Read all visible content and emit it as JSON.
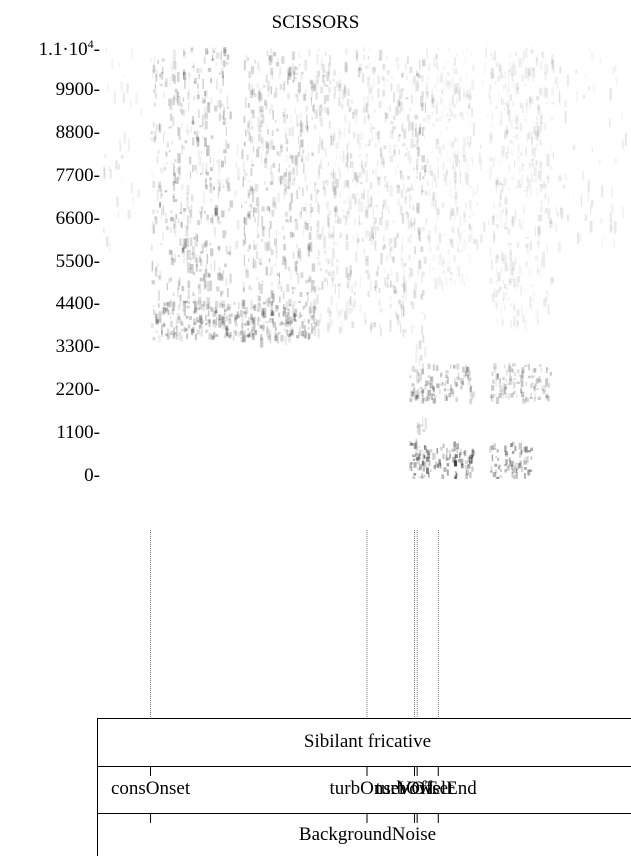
{
  "chart_data": {
    "type": "heatmap",
    "title": "SCISSORS",
    "ylabel": "",
    "xlabel": "",
    "ylim": [
      0,
      11000
    ],
    "yticks": [
      {
        "value": 0,
        "label": "0-"
      },
      {
        "value": 1100,
        "label": "1100-"
      },
      {
        "value": 2200,
        "label": "2200-"
      },
      {
        "value": 3300,
        "label": "3300-"
      },
      {
        "value": 4400,
        "label": "4400-"
      },
      {
        "value": 5500,
        "label": "5500-"
      },
      {
        "value": 6600,
        "label": "6600-"
      },
      {
        "value": 7700,
        "label": "7700-"
      },
      {
        "value": 8800,
        "label": "8800-"
      },
      {
        "value": 9900,
        "label": "9900-"
      },
      {
        "value": 11000,
        "label": "1.1·10",
        "label_exp": "4",
        "label_suffix": "-"
      }
    ],
    "time_range": [
      0,
      1
    ],
    "segments": [
      {
        "name": "",
        "start": 0.09,
        "end": 0.24,
        "low_cut": 3600,
        "intensity": 0.75
      },
      {
        "name": "",
        "start": 0.26,
        "end": 0.4,
        "low_cut": 3600,
        "intensity": 0.7
      },
      {
        "name": "",
        "start": 0.4,
        "end": 0.59,
        "low_cut": 3800,
        "intensity": 0.45
      },
      {
        "name": "",
        "start": 0.59,
        "end": 0.61,
        "low_cut": 0,
        "intensity": 0.6
      },
      {
        "name": "",
        "start": 0.61,
        "end": 0.7,
        "low_cut": 5000,
        "intensity": 0.25
      },
      {
        "name": "",
        "start": 0.73,
        "end": 0.85,
        "low_cut": 4000,
        "intensity": 0.3
      }
    ],
    "formants": [
      {
        "start": 0.58,
        "end": 0.7,
        "freq": 500,
        "intensity": 0.85
      },
      {
        "start": 0.73,
        "end": 0.81,
        "freq": 500,
        "intensity": 0.8
      },
      {
        "start": 0.58,
        "end": 0.7,
        "freq": 2500,
        "intensity": 0.55
      },
      {
        "start": 0.73,
        "end": 0.85,
        "freq": 2500,
        "intensity": 0.45
      },
      {
        "start": 0.09,
        "end": 0.4,
        "freq": 4100,
        "intensity": 0.5
      }
    ]
  },
  "annotation": {
    "event_times": [
      0.09,
      0.5,
      0.59,
      0.595,
      0.635
    ],
    "tier1_label": "Sibilant fricative",
    "tier2_labels": [
      {
        "text": "consOnset",
        "time": 0.09
      },
      {
        "text": "turbOnset",
        "time": 0.5
      },
      {
        "text": "turbOffset",
        "time": 0.59
      },
      {
        "text": "VOT",
        "time": 0.595
      },
      {
        "text": "vowelEnd",
        "time": 0.635
      }
    ],
    "tier3_label": "BackgroundNoise"
  }
}
